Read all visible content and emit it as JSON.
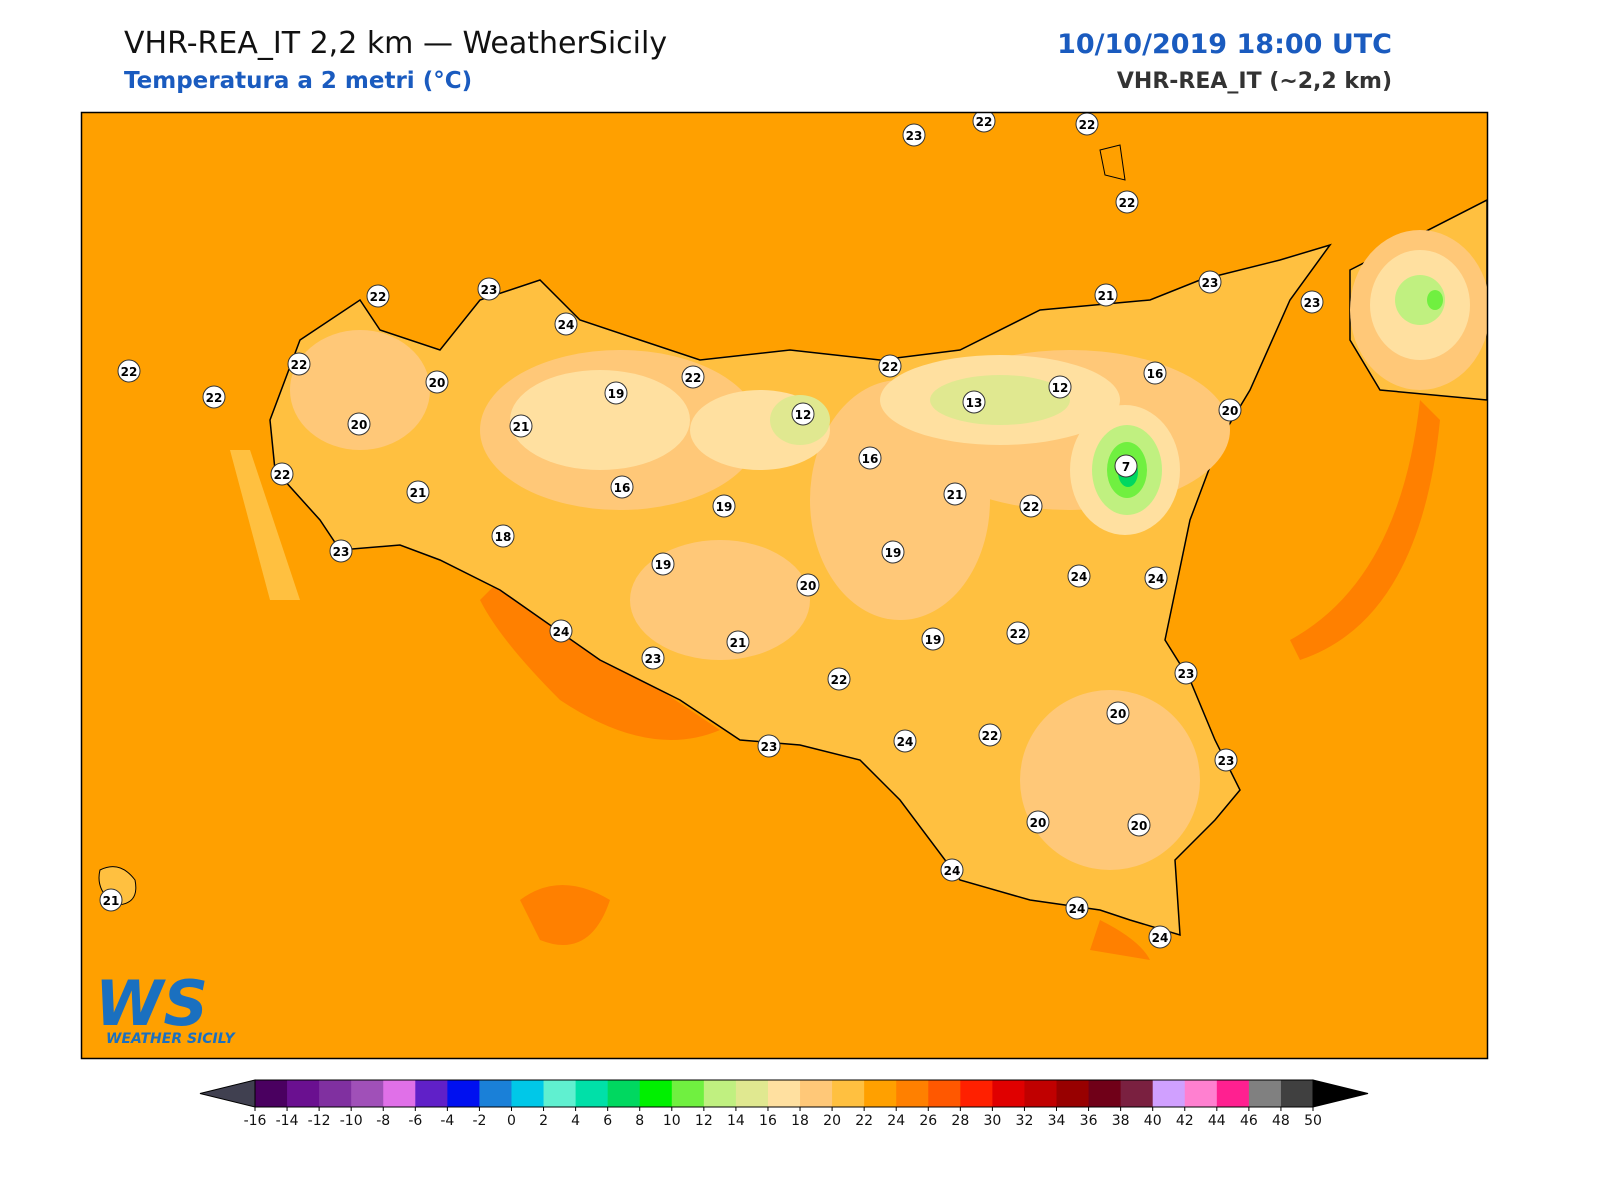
{
  "header": {
    "title": "VHR-REA_IT 2,2 km — WeatherSicily",
    "subtitle": "Temperatura a 2 metri (°C)",
    "datetime": "10/10/2019 18:00 UTC",
    "model": "VHR-REA_IT (~2,2 km)"
  },
  "stations": [
    23,
    22,
    22,
    22,
    22,
    23,
    24,
    22,
    22,
    22,
    20,
    20,
    21,
    19,
    22,
    12,
    22,
    13,
    12,
    16,
    21,
    23,
    23,
    20,
    7,
    16,
    21,
    22,
    22,
    21,
    16,
    19,
    18,
    23,
    19,
    20,
    19,
    24,
    24,
    24,
    23,
    21,
    19,
    22,
    22,
    23,
    20,
    24,
    22,
    23,
    23,
    20,
    20,
    24,
    24,
    24,
    21
  ],
  "logo": {
    "mark": "WS",
    "name": "WEATHER SICILY"
  },
  "colorbar": {
    "ticks": [
      -16,
      -14,
      -12,
      -10,
      -8,
      -6,
      -4,
      -2,
      0,
      2,
      4,
      6,
      8,
      10,
      12,
      14,
      16,
      18,
      20,
      22,
      24,
      26,
      28,
      30,
      32,
      34,
      36,
      38,
      40,
      42,
      44,
      46,
      48,
      50
    ],
    "colors": [
      "#4a0060",
      "#6a1090",
      "#8030a0",
      "#a050b8",
      "#e070e8",
      "#6020c8",
      "#0010f0",
      "#1a80d8",
      "#00c8e8",
      "#60f0d0",
      "#00e0a8",
      "#00d860",
      "#00f000",
      "#70f040",
      "#c0f080",
      "#e0e890",
      "#ffe0a0",
      "#ffc878",
      "#ffc040",
      "#ffa000",
      "#ff8000",
      "#ff5800",
      "#ff2000",
      "#e00000",
      "#c00000",
      "#980000",
      "#700018",
      "#7a2040",
      "#d0a0ff",
      "#ff80d0",
      "#ff2090",
      "#808080",
      "#404040"
    ],
    "under": "#404050",
    "over": "#000000"
  }
}
